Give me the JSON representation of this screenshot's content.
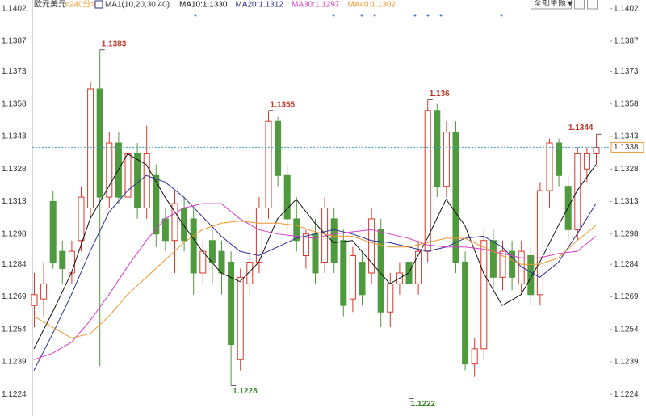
{
  "chart_data": {
    "type": "candlestick",
    "title": "欧元美元",
    "period": "<240分>",
    "indicator": "MA1(10,20,30,40)",
    "theme_button": "全部主题▼",
    "ylim": [
      1.1214,
      1.1406
    ],
    "yticks": [
      1.1402,
      1.1387,
      1.1373,
      1.1358,
      1.1343,
      1.1328,
      1.1313,
      1.1298,
      1.1284,
      1.1269,
      1.1254,
      1.1239,
      1.1224
    ],
    "up_color": "#d9362b",
    "down_color": "#4e9a3c",
    "candles": {
      "open": [
        1.1265,
        1.1268,
        1.1313,
        1.129,
        1.128,
        1.1295,
        1.131,
        1.1365,
        1.1315,
        1.134,
        1.1315,
        1.1335,
        1.131,
        1.1325,
        1.1305,
        1.1295,
        1.131,
        1.1305,
        1.128,
        1.1295,
        1.129,
        1.1285,
        1.124,
        1.1275,
        1.1285,
        1.131,
        1.135,
        1.1325,
        1.1305,
        1.1288,
        1.1298,
        1.1285,
        1.1305,
        1.1295,
        1.1268,
        1.1285,
        1.128,
        1.13,
        1.1262,
        1.1275,
        1.1285,
        1.1275,
        1.129,
        1.1355,
        1.132,
        1.1345,
        1.1285,
        1.1238,
        1.1245,
        1.1295,
        1.1278,
        1.129,
        1.1275,
        1.1288,
        1.127,
        1.1318,
        1.134,
        1.132,
        1.13,
        1.1328,
        1.1335
      ],
      "high": [
        1.128,
        1.1285,
        1.1318,
        1.1295,
        1.1295,
        1.132,
        1.1368,
        1.1383,
        1.1345,
        1.1345,
        1.134,
        1.134,
        1.1348,
        1.133,
        1.131,
        1.1318,
        1.1315,
        1.131,
        1.1295,
        1.13,
        1.1295,
        1.129,
        1.1282,
        1.129,
        1.1315,
        1.1355,
        1.1352,
        1.133,
        1.1315,
        1.13,
        1.1305,
        1.1315,
        1.131,
        1.13,
        1.1292,
        1.129,
        1.131,
        1.1305,
        1.128,
        1.1285,
        1.1295,
        1.1295,
        1.136,
        1.1358,
        1.135,
        1.135,
        1.129,
        1.125,
        1.13,
        1.13,
        1.1295,
        1.1295,
        1.1295,
        1.1292,
        1.1322,
        1.1342,
        1.1342,
        1.1325,
        1.1338,
        1.1338,
        1.1344
      ],
      "low": [
        1.1255,
        1.126,
        1.1282,
        1.1275,
        1.1275,
        1.129,
        1.1305,
        1.1237,
        1.131,
        1.1312,
        1.13,
        1.1305,
        1.1305,
        1.1292,
        1.129,
        1.128,
        1.129,
        1.127,
        1.1275,
        1.1275,
        1.127,
        1.1228,
        1.1235,
        1.127,
        1.128,
        1.1305,
        1.132,
        1.13,
        1.129,
        1.1282,
        1.1275,
        1.128,
        1.128,
        1.126,
        1.1262,
        1.1265,
        1.1275,
        1.1255,
        1.1255,
        1.127,
        1.1222,
        1.127,
        1.1285,
        1.1315,
        1.1315,
        1.128,
        1.1235,
        1.1232,
        1.124,
        1.1272,
        1.1272,
        1.1272,
        1.127,
        1.1265,
        1.1265,
        1.131,
        1.132,
        1.1295,
        1.1295,
        1.1322,
        1.133
      ],
      "close": [
        1.127,
        1.1275,
        1.1285,
        1.1282,
        1.129,
        1.1315,
        1.1365,
        1.1315,
        1.134,
        1.1315,
        1.1335,
        1.131,
        1.1335,
        1.1298,
        1.1295,
        1.1312,
        1.1295,
        1.128,
        1.129,
        1.1285,
        1.128,
        1.1247,
        1.1278,
        1.1285,
        1.131,
        1.135,
        1.1325,
        1.1305,
        1.1295,
        1.1298,
        1.128,
        1.131,
        1.1285,
        1.1265,
        1.1288,
        1.127,
        1.1305,
        1.1262,
        1.1275,
        1.128,
        1.1275,
        1.129,
        1.1355,
        1.132,
        1.1345,
        1.1285,
        1.1238,
        1.1245,
        1.1295,
        1.1278,
        1.129,
        1.1278,
        1.129,
        1.127,
        1.1318,
        1.134,
        1.1325,
        1.13,
        1.1335,
        1.1335,
        1.1338
      ]
    },
    "ma_x": [
      0,
      2,
      4,
      6,
      8,
      10,
      12,
      14,
      16,
      18,
      20,
      22,
      24,
      26,
      28,
      30,
      32,
      34,
      36,
      38,
      40,
      42,
      44,
      46,
      48,
      50,
      52,
      54,
      56,
      58,
      60
    ],
    "series": [
      {
        "name": "MA10:1.1330",
        "color": "#111111",
        "values": [
          1.1245,
          1.1262,
          1.128,
          1.1305,
          1.132,
          1.1335,
          1.133,
          1.1315,
          1.1302,
          1.129,
          1.128,
          1.1276,
          1.1285,
          1.1305,
          1.1314,
          1.1303,
          1.1294,
          1.1295,
          1.1285,
          1.1275,
          1.128,
          1.1296,
          1.1314,
          1.1302,
          1.128,
          1.1265,
          1.127,
          1.1285,
          1.1302,
          1.1318,
          1.133
        ]
      },
      {
        "name": "MA20:1.1312",
        "color": "#2b2f8f",
        "values": [
          1.1235,
          1.1252,
          1.127,
          1.129,
          1.1308,
          1.1318,
          1.1325,
          1.1322,
          1.1315,
          1.1306,
          1.1297,
          1.129,
          1.1288,
          1.1292,
          1.1296,
          1.1298,
          1.13,
          1.1298,
          1.1295,
          1.1294,
          1.1292,
          1.129,
          1.1292,
          1.1296,
          1.1297,
          1.1292,
          1.1283,
          1.1278,
          1.1285,
          1.1298,
          1.1312
        ]
      },
      {
        "name": "MA30:1.1297",
        "color": "#d63cc8",
        "values": [
          1.124,
          1.1243,
          1.1248,
          1.1258,
          1.127,
          1.1283,
          1.1295,
          1.1305,
          1.131,
          1.1312,
          1.1312,
          1.1305,
          1.13,
          1.1298,
          1.1297,
          1.1296,
          1.1298,
          1.1299,
          1.13,
          1.1298,
          1.1296,
          1.1293,
          1.1292,
          1.1292,
          1.1291,
          1.1289,
          1.1287,
          1.1287,
          1.1289,
          1.129,
          1.1297
        ]
      },
      {
        "name": "MA40:1.1302",
        "color": "#f0962e",
        "values": [
          1.126,
          1.1255,
          1.125,
          1.1252,
          1.126,
          1.127,
          1.1278,
          1.1286,
          1.1294,
          1.13,
          1.1303,
          1.1304,
          1.1303,
          1.1303,
          1.1302,
          1.1299,
          1.1297,
          1.1297,
          1.1294,
          1.1292,
          1.1292,
          1.1294,
          1.1296,
          1.1296,
          1.1292,
          1.1288,
          1.1284,
          1.1284,
          1.1287,
          1.1295,
          1.1302
        ]
      }
    ],
    "last_price": 1.1338,
    "annotations": [
      {
        "index": 7,
        "value": 1.1383,
        "kind": "high"
      },
      {
        "index": 25,
        "value": 1.1355,
        "kind": "high"
      },
      {
        "index": 42,
        "value": 1.136,
        "kind": "high"
      },
      {
        "index": 60,
        "value": 1.1344,
        "kind": "high"
      },
      {
        "index": 21,
        "value": 1.1228,
        "kind": "low"
      },
      {
        "index": 40,
        "value": 1.1222,
        "kind": "low"
      }
    ]
  }
}
